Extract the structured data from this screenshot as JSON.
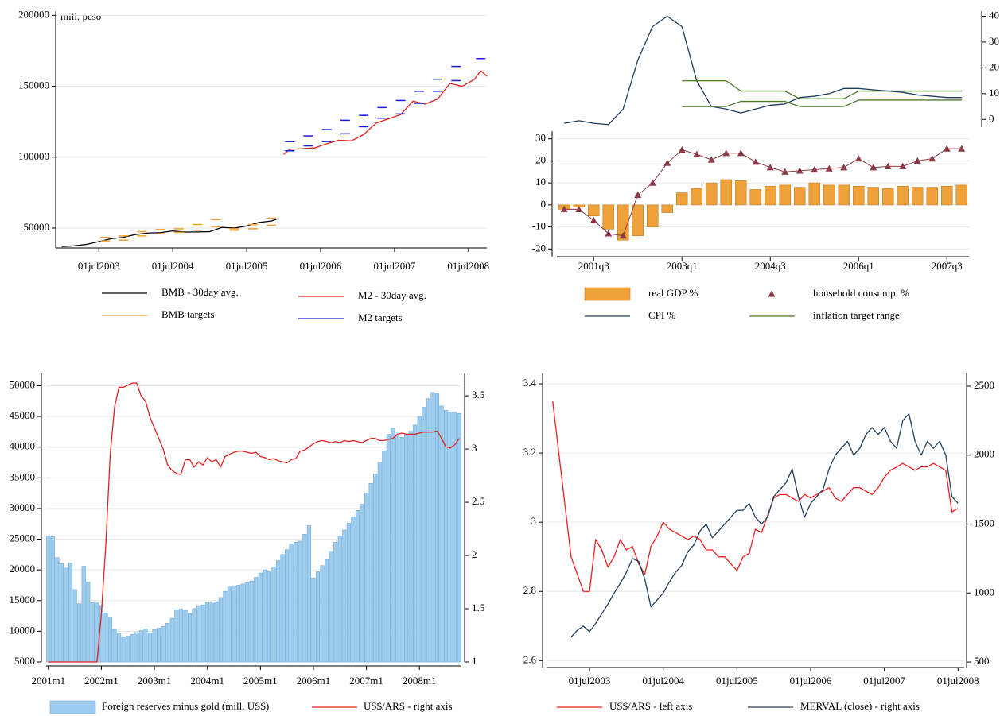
{
  "chart_data": [
    {
      "type": "line",
      "annotation": "mill. peso",
      "xlim": [
        "2002-12",
        "2008-10"
      ],
      "xticks": [
        {
          "value": "2003-07-01",
          "label": "01jul2003"
        },
        {
          "value": "2004-07-01",
          "label": "01jul2004"
        },
        {
          "value": "2005-07-01",
          "label": "01jul2005"
        },
        {
          "value": "2006-07-01",
          "label": "01jul2006"
        },
        {
          "value": "2007-07-01",
          "label": "01jul2007"
        },
        {
          "value": "2008-07-01",
          "label": "01jul2008"
        }
      ],
      "ylim": [
        36000,
        203000
      ],
      "yticks": [
        50000,
        100000,
        150000,
        200000
      ],
      "grid": true,
      "series": [
        {
          "name": "BMB - 30day avg.",
          "color": "#000000",
          "style": "line",
          "x": [
            "2003-01",
            "2003-03",
            "2003-05",
            "2003-07",
            "2003-09",
            "2003-11",
            "2004-01",
            "2004-03",
            "2004-05",
            "2004-07",
            "2004-09",
            "2004-11",
            "2005-01",
            "2005-03",
            "2005-05",
            "2005-07",
            "2005-09",
            "2005-11",
            "2005-12"
          ],
          "values": [
            37000,
            37500,
            38500,
            40500,
            42500,
            43500,
            45500,
            46500,
            46800,
            48000,
            47200,
            47300,
            47500,
            50500,
            50000,
            51500,
            54000,
            55000,
            56500
          ]
        },
        {
          "name": "M2 - 30day avg.",
          "color": "#e8201e",
          "style": "line",
          "x": [
            "2006-01",
            "2006-02",
            "2006-04",
            "2006-06",
            "2006-08",
            "2006-10",
            "2006-12",
            "2007-02",
            "2007-04",
            "2007-06",
            "2007-08",
            "2007-10",
            "2007-12",
            "2008-02",
            "2008-04",
            "2008-06",
            "2008-08",
            "2008-09",
            "2008-10"
          ],
          "values": [
            102000,
            105500,
            106000,
            106500,
            109500,
            112000,
            111500,
            116000,
            124000,
            127000,
            130000,
            139500,
            137500,
            141000,
            152000,
            150000,
            155000,
            161000,
            157000
          ]
        },
        {
          "name": "BMB targets",
          "color": "#f0a030",
          "style": "dash",
          "x": [
            "2003-08",
            "2003-08",
            "2003-11",
            "2003-11",
            "2004-02",
            "2004-02",
            "2004-05",
            "2004-05",
            "2004-08",
            "2004-08",
            "2004-11",
            "2004-11",
            "2005-02",
            "2005-02",
            "2005-05",
            "2005-05",
            "2005-08",
            "2005-08",
            "2005-11",
            "2005-11"
          ],
          "values": [
            43500,
            41000,
            44500,
            41500,
            47500,
            44500,
            49000,
            46000,
            49500,
            47000,
            52500,
            48500,
            56000,
            51000,
            49500,
            48500,
            52500,
            49500,
            57000,
            52000
          ]
        },
        {
          "name": "M2 targets",
          "color": "#1a1adc",
          "style": "dash",
          "x": [
            "2006-02",
            "2006-02",
            "2006-05",
            "2006-05",
            "2006-08",
            "2006-08",
            "2006-11",
            "2006-11",
            "2007-02",
            "2007-02",
            "2007-05",
            "2007-05",
            "2007-08",
            "2007-08",
            "2007-11",
            "2007-11",
            "2008-02",
            "2008-02",
            "2008-05",
            "2008-05",
            "2008-09"
          ],
          "values": [
            111000,
            104500,
            115000,
            108000,
            119500,
            111000,
            126000,
            116500,
            129500,
            121500,
            135000,
            127500,
            140000,
            130500,
            146500,
            138000,
            155000,
            146500,
            164000,
            154000,
            169500
          ]
        }
      ]
    },
    {
      "type": "bar",
      "categories": [
        null,
        null,
        "2001q3",
        null,
        null,
        null,
        null,
        null,
        "2003q1",
        null,
        null,
        null,
        null,
        null,
        "2004q3",
        null,
        null,
        null,
        null,
        null,
        "2006q1",
        null,
        null,
        null,
        null,
        null,
        "2007q3",
        null
      ],
      "ylim": [
        -23.5,
        33.5
      ],
      "yticks": [
        -20,
        -10,
        0,
        10,
        20,
        30
      ],
      "grid": true,
      "y2lim": [
        -3,
        42
      ],
      "y2ticks": [
        0,
        10,
        20,
        30,
        40
      ],
      "series": [
        {
          "name": "real GDP %",
          "color": "#f0a23a",
          "style": "bar",
          "values": [
            -2,
            -1,
            -5,
            -11,
            -16,
            -14,
            -10,
            -3.5,
            5.5,
            7.5,
            10,
            11.5,
            11,
            7,
            8.5,
            9,
            8,
            10,
            9,
            9,
            8.5,
            8,
            7.5,
            8.5,
            8,
            8,
            8.5,
            9
          ]
        },
        {
          "name": "household consump. %",
          "color": "#8b3a46",
          "style": "line-triangle",
          "values": [
            -2,
            -2,
            -7,
            -13,
            -14,
            4.5,
            10,
            19,
            25,
            23,
            20.5,
            23.5,
            23.5,
            19.5,
            17,
            15,
            15.5,
            16,
            16.5,
            17,
            21,
            17,
            17.5,
            17.5,
            20,
            21,
            25.5,
            25.5
          ]
        },
        {
          "name": "CPI %",
          "color": "#1f3d5c",
          "style": "line",
          "axis": "y2",
          "values": [
            -1.5,
            -0.5,
            -1.5,
            -2,
            4,
            23,
            36,
            40,
            36,
            15,
            5,
            4,
            2.5,
            4,
            5.5,
            6,
            8.5,
            9,
            10,
            12,
            12,
            11.5,
            11,
            10.5,
            9.5,
            9,
            8.5,
            8.5
          ]
        },
        {
          "name": "inflation target range",
          "color": "#4f7a2e",
          "style": "band",
          "axis": "y2",
          "high": [
            null,
            null,
            null,
            null,
            null,
            null,
            null,
            null,
            15,
            15,
            15,
            15,
            11,
            11,
            11,
            11,
            8,
            8,
            8,
            8,
            11,
            11,
            11,
            11,
            11,
            11,
            11,
            11
          ],
          "low": [
            null,
            null,
            null,
            null,
            null,
            null,
            null,
            null,
            5,
            5,
            5,
            5,
            7,
            7,
            7,
            7,
            5,
            5,
            5,
            5,
            7.5,
            7.5,
            7.5,
            7.5,
            7.5,
            7.5,
            7.5,
            7.5
          ]
        }
      ]
    },
    {
      "type": "bar",
      "categories": [
        "2001m1",
        null,
        null,
        null,
        null,
        null,
        null,
        null,
        null,
        null,
        null,
        null,
        "2002m1",
        null,
        null,
        null,
        null,
        null,
        null,
        null,
        null,
        null,
        null,
        null,
        "2003m1",
        null,
        null,
        null,
        null,
        null,
        null,
        null,
        null,
        null,
        null,
        null,
        "2004m1",
        null,
        null,
        null,
        null,
        null,
        null,
        null,
        null,
        null,
        null,
        null,
        "2005m1",
        null,
        null,
        null,
        null,
        null,
        null,
        null,
        null,
        null,
        null,
        null,
        "2006m1",
        null,
        null,
        null,
        null,
        null,
        null,
        null,
        null,
        null,
        null,
        null,
        "2007m1",
        null,
        null,
        null,
        null,
        null,
        null,
        null,
        null,
        null,
        null,
        null,
        "2008m1",
        null,
        null,
        null,
        null,
        null,
        null,
        null,
        null,
        null
      ],
      "ylim": [
        5000,
        52000
      ],
      "yticks": [
        5000,
        10000,
        15000,
        20000,
        25000,
        30000,
        35000,
        40000,
        45000,
        50000
      ],
      "grid": true,
      "y2lim": [
        1,
        3.71
      ],
      "y2ticks": [
        1,
        1.5,
        2,
        2.5,
        3,
        3.5
      ],
      "series": [
        {
          "name": "Foreign reserves minus gold (mill. US$)",
          "color": "#9dcdee",
          "style": "bar",
          "values": [
            25500,
            25400,
            22000,
            21000,
            20300,
            21100,
            16800,
            14500,
            20600,
            18000,
            14700,
            14600,
            14200,
            13000,
            12300,
            10300,
            9600,
            9100,
            9200,
            9500,
            9800,
            10100,
            10400,
            9700,
            10300,
            10500,
            10800,
            11300,
            12100,
            13500,
            13600,
            13400,
            12900,
            13700,
            14200,
            14300,
            14700,
            14600,
            14800,
            15500,
            16500,
            17200,
            17400,
            17500,
            17700,
            17900,
            18200,
            18800,
            19500,
            20000,
            19700,
            20500,
            21500,
            22500,
            23300,
            24200,
            24500,
            24700,
            25800,
            27200,
            18700,
            19700,
            20700,
            21700,
            23000,
            24500,
            25500,
            26500,
            27600,
            28600,
            29700,
            30700,
            32500,
            34100,
            35600,
            37500,
            39400,
            42100,
            43100,
            42000,
            41600,
            42000,
            42600,
            43600,
            45000,
            46500,
            47900,
            48900,
            48700,
            46700,
            46000,
            45700,
            45700,
            45500
          ]
        },
        {
          "name": "US$/ARS - right axis",
          "color": "#e02020",
          "style": "line",
          "axis": "y2",
          "values": [
            1,
            1,
            1,
            1,
            1,
            1,
            1,
            1,
            1,
            1,
            1,
            1,
            1.45,
            2.1,
            2.95,
            3.4,
            3.58,
            3.58,
            3.6,
            3.62,
            3.62,
            3.5,
            3.45,
            3.3,
            3.2,
            3.1,
            3.0,
            2.85,
            2.8,
            2.77,
            2.76,
            2.9,
            2.9,
            2.83,
            2.88,
            2.85,
            2.92,
            2.88,
            2.9,
            2.83,
            2.93,
            2.95,
            2.97,
            2.98,
            2.98,
            2.97,
            2.96,
            2.97,
            2.93,
            2.92,
            2.9,
            2.91,
            2.89,
            2.88,
            2.87,
            2.9,
            2.91,
            2.98,
            2.99,
            3.02,
            3.05,
            3.07,
            3.08,
            3.07,
            3.06,
            3.07,
            3.06,
            3.08,
            3.07,
            3.08,
            3.07,
            3.06,
            3.08,
            3.1,
            3.1,
            3.08,
            3.08,
            3.09,
            3.1,
            3.14,
            3.15,
            3.14,
            3.14,
            3.14,
            3.15,
            3.16,
            3.16,
            3.16,
            3.17,
            3.1,
            3.02,
            3.01,
            3.04,
            3.1
          ]
        }
      ]
    },
    {
      "type": "line",
      "x": [
        "2003-01",
        "2003-02",
        "2003-03",
        "2003-04",
        "2003-05",
        "2003-06",
        "2003-07",
        "2003-08",
        "2003-09",
        "2003-10",
        "2003-11",
        "2003-12",
        "2004-01",
        "2004-02",
        "2004-03",
        "2004-04",
        "2004-05",
        "2004-06",
        "2004-07",
        "2004-08",
        "2004-09",
        "2004-10",
        "2004-11",
        "2004-12",
        "2005-01",
        "2005-02",
        "2005-03",
        "2005-04",
        "2005-05",
        "2005-06",
        "2005-07",
        "2005-08",
        "2005-09",
        "2005-10",
        "2005-11",
        "2005-12",
        "2006-01",
        "2006-02",
        "2006-03",
        "2006-04",
        "2006-05",
        "2006-06",
        "2006-07",
        "2006-08",
        "2006-09",
        "2006-10",
        "2006-11",
        "2006-12",
        "2007-01",
        "2007-02",
        "2007-03",
        "2007-04",
        "2007-05",
        "2007-06",
        "2007-07",
        "2007-08",
        "2007-09",
        "2007-10",
        "2007-11",
        "2007-12",
        "2008-01",
        "2008-02",
        "2008-03",
        "2008-04",
        "2008-05",
        "2008-06",
        "2008-07"
      ],
      "xlim": [
        "2002-12",
        "2008-08"
      ],
      "xticks": [
        {
          "value": "2003-07-01",
          "label": "01jul2003"
        },
        {
          "value": "2004-07-01",
          "label": "01jul2004"
        },
        {
          "value": "2005-07-01",
          "label": "01jul2005"
        },
        {
          "value": "2006-07-01",
          "label": "01jul2006"
        },
        {
          "value": "2007-07-01",
          "label": "01jul2007"
        },
        {
          "value": "2008-07-01",
          "label": "01jul2008"
        }
      ],
      "ylim": [
        2.58,
        3.43
      ],
      "yticks": [
        2.6,
        2.8,
        3,
        3.2,
        3.4
      ],
      "grid": true,
      "y2lim": [
        460,
        2592
      ],
      "y2ticks": [
        500,
        1000,
        1500,
        2000,
        2500
      ],
      "series": [
        {
          "name": "US$/ARS - left axis",
          "color": "#ee1c1c",
          "style": "line",
          "values": [
            3.35,
            3.2,
            3.05,
            2.9,
            2.85,
            2.8,
            2.8,
            2.95,
            2.92,
            2.87,
            2.9,
            2.95,
            2.92,
            2.93,
            2.88,
            2.85,
            2.93,
            2.96,
            3.0,
            2.98,
            2.97,
            2.96,
            2.95,
            2.96,
            2.95,
            2.92,
            2.92,
            2.9,
            2.9,
            2.88,
            2.86,
            2.9,
            2.91,
            2.98,
            2.97,
            3.02,
            3.07,
            3.08,
            3.08,
            3.07,
            3.06,
            3.08,
            3.07,
            3.08,
            3.09,
            3.1,
            3.07,
            3.06,
            3.08,
            3.1,
            3.1,
            3.09,
            3.08,
            3.1,
            3.13,
            3.15,
            3.16,
            3.17,
            3.16,
            3.15,
            3.16,
            3.16,
            3.17,
            3.16,
            3.15,
            3.03,
            3.04
          ]
        },
        {
          "name": "MERVAL (close) - right axis",
          "color": "#1f3f60",
          "style": "line",
          "axis": "y2",
          "values": [
            null,
            null,
            null,
            680,
            730,
            760,
            720,
            780,
            850,
            920,
            1000,
            1070,
            1150,
            1250,
            1230,
            1100,
            900,
            950,
            1000,
            1080,
            1150,
            1200,
            1300,
            1350,
            1450,
            1500,
            1400,
            1450,
            1500,
            1550,
            1600,
            1600,
            1650,
            1550,
            1500,
            1550,
            1700,
            1750,
            1800,
            1900,
            1700,
            1550,
            1650,
            1700,
            1750,
            1900,
            2000,
            2050,
            2100,
            2000,
            2050,
            2150,
            2200,
            2150,
            2200,
            2100,
            2050,
            2250,
            2300,
            2100,
            2000,
            2100,
            2050,
            2100,
            2000,
            1700,
            1650
          ]
        }
      ]
    }
  ]
}
